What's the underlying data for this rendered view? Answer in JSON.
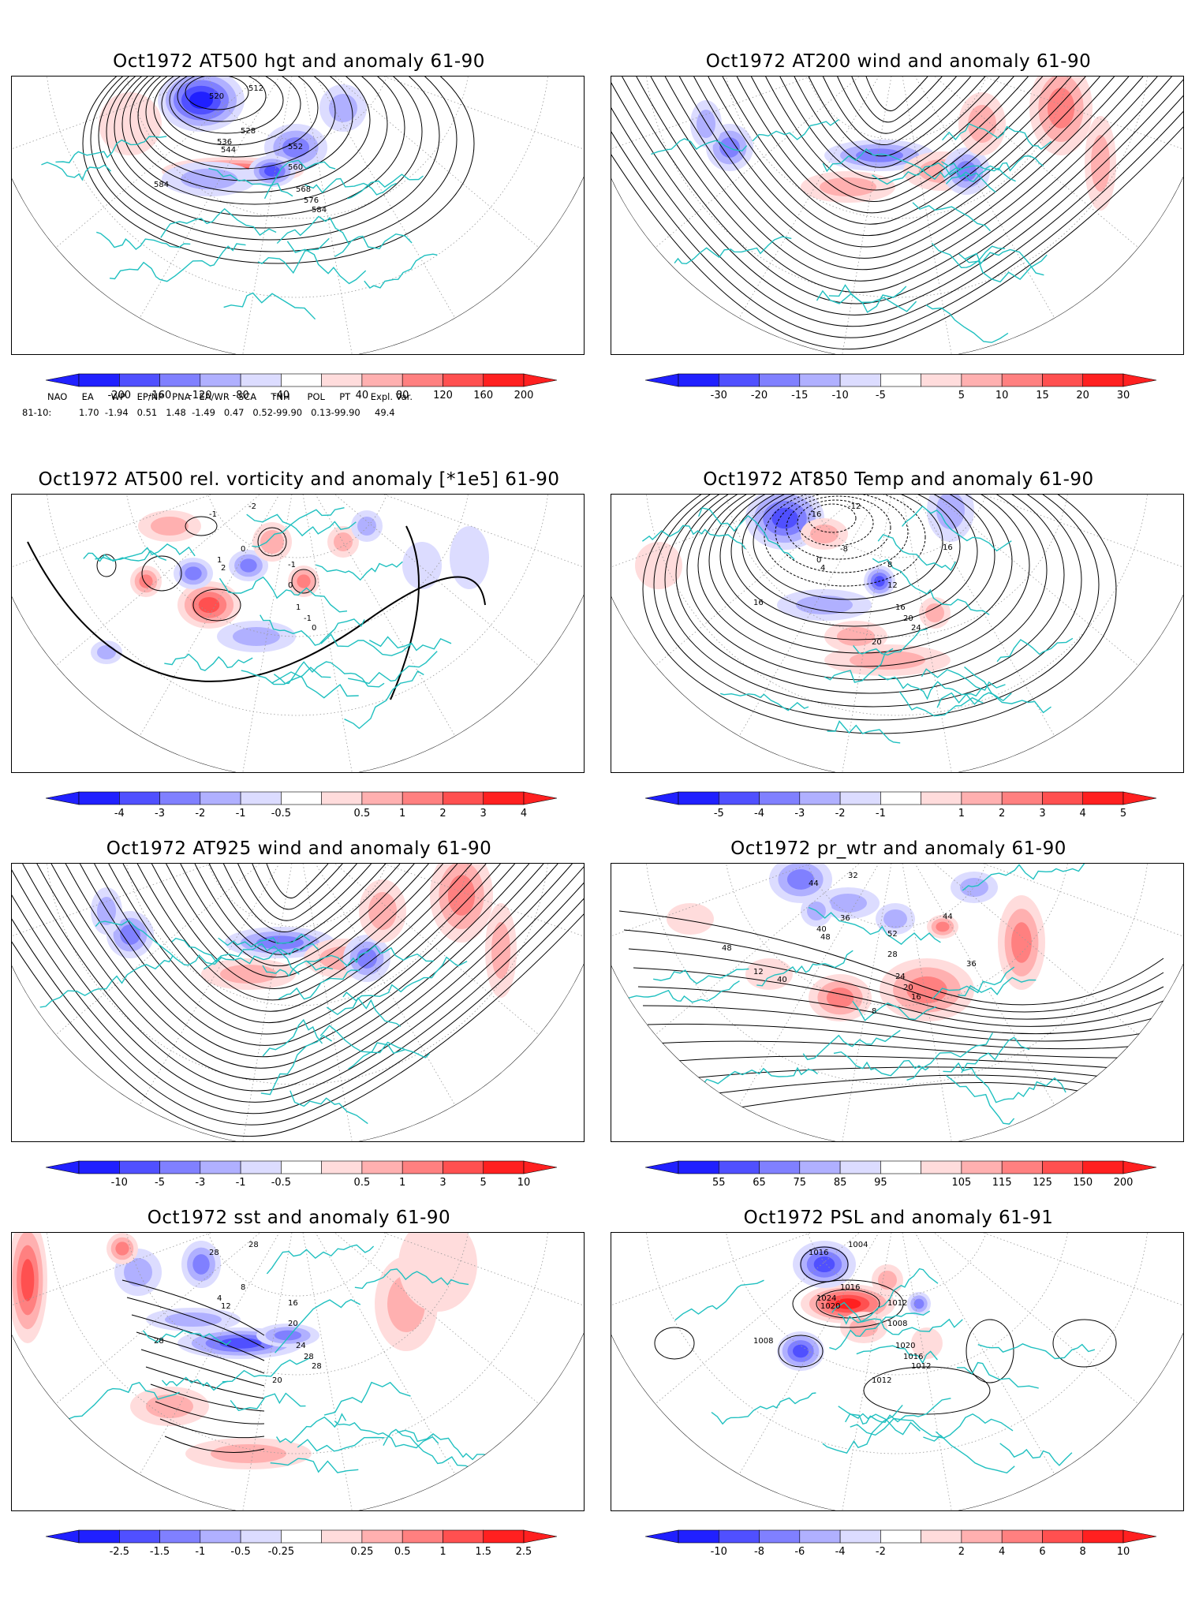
{
  "panels": [
    {
      "title": "Oct1972 AT500 hgt and anomaly 61-90",
      "colorbar": [
        "-200",
        "-160",
        "-120",
        "-80",
        "-40",
        "40",
        "80",
        "120",
        "160",
        "200"
      ],
      "contour_labels": [
        "520",
        "512",
        "528",
        "536",
        "544",
        "552",
        "560",
        "568",
        "576",
        "584",
        "584"
      ]
    },
    {
      "title": "Oct1972 AT200 wind and anomaly 61-90",
      "colorbar": [
        "-30",
        "-20",
        "-15",
        "-10",
        "-5",
        "5",
        "10",
        "15",
        "20",
        "30"
      ],
      "contour_labels": []
    },
    {
      "title": "Oct1972 AT500 rel. vorticity and anomaly [*1e5] 61-90",
      "colorbar": [
        "-4",
        "-3",
        "-2",
        "-1",
        "-0.5",
        "0.5",
        "1",
        "2",
        "3",
        "4"
      ],
      "contour_labels": [
        "-1",
        "-2",
        "0",
        "1",
        "2",
        "-1",
        "0",
        "1",
        "-1",
        "0"
      ]
    },
    {
      "title": "Oct1972 AT850 Temp and anomaly 61-90",
      "colorbar": [
        "-5",
        "-4",
        "-3",
        "-2",
        "-1",
        "1",
        "2",
        "3",
        "4",
        "5"
      ],
      "contour_labels": [
        "-16",
        "-12",
        "-8",
        "0",
        "4",
        "8",
        "12",
        "16",
        "20",
        "24",
        "16",
        "20",
        "16"
      ]
    },
    {
      "title": "Oct1972 AT925 wind and anomaly 61-90",
      "colorbar": [
        "-10",
        "-5",
        "-3",
        "-1",
        "-0.5",
        "0.5",
        "1",
        "3",
        "5",
        "10"
      ],
      "contour_labels": []
    },
    {
      "title": "Oct1972 pr_wtr and anomaly 61-90",
      "colorbar": [
        "55",
        "65",
        "75",
        "85",
        "95",
        "105",
        "115",
        "125",
        "150",
        "200"
      ],
      "contour_labels": [
        "44",
        "32",
        "36",
        "40",
        "48",
        "52",
        "28",
        "24",
        "20",
        "16",
        "12",
        "8",
        "44",
        "40",
        "36",
        "48"
      ]
    },
    {
      "title": "Oct1972 sst and anomaly 61-90",
      "colorbar": [
        "-2.5",
        "-1.5",
        "-1",
        "-0.5",
        "-0.25",
        "0.25",
        "0.5",
        "1",
        "1.5",
        "2.5"
      ],
      "contour_labels": [
        "28",
        "28",
        "8",
        "4",
        "12",
        "16",
        "20",
        "24",
        "28",
        "28",
        "28",
        "20"
      ]
    },
    {
      "title": "Oct1972 PSL and anomaly 61-91",
      "colorbar": [
        "-10",
        "-8",
        "-6",
        "-4",
        "-2",
        "2",
        "4",
        "6",
        "8",
        "10"
      ],
      "contour_labels": [
        "1016",
        "1004",
        "1016",
        "1024",
        "1020",
        "1012",
        "1008",
        "1020",
        "1016",
        "1012",
        "1008",
        "1012"
      ]
    }
  ],
  "indices": {
    "header": "NAO     EA      WP    EP/NP   PNA   EA/WR   SCA     TNH      POL     PT       Expl. Var.",
    "row_label": "81-10:",
    "values": "1.70  -1.94   0.51   1.48  -1.49   0.47   0.52-99.90   0.13-99.90     49.4"
  },
  "colors": {
    "coast": "#20c0c0",
    "blue_scale": [
      "#2020ff",
      "#5050ff",
      "#8080ff",
      "#b0b0ff",
      "#dcdcff"
    ],
    "red_scale": [
      "#ffdcdc",
      "#ffb0b0",
      "#ff8080",
      "#ff5050",
      "#ff2020"
    ]
  }
}
